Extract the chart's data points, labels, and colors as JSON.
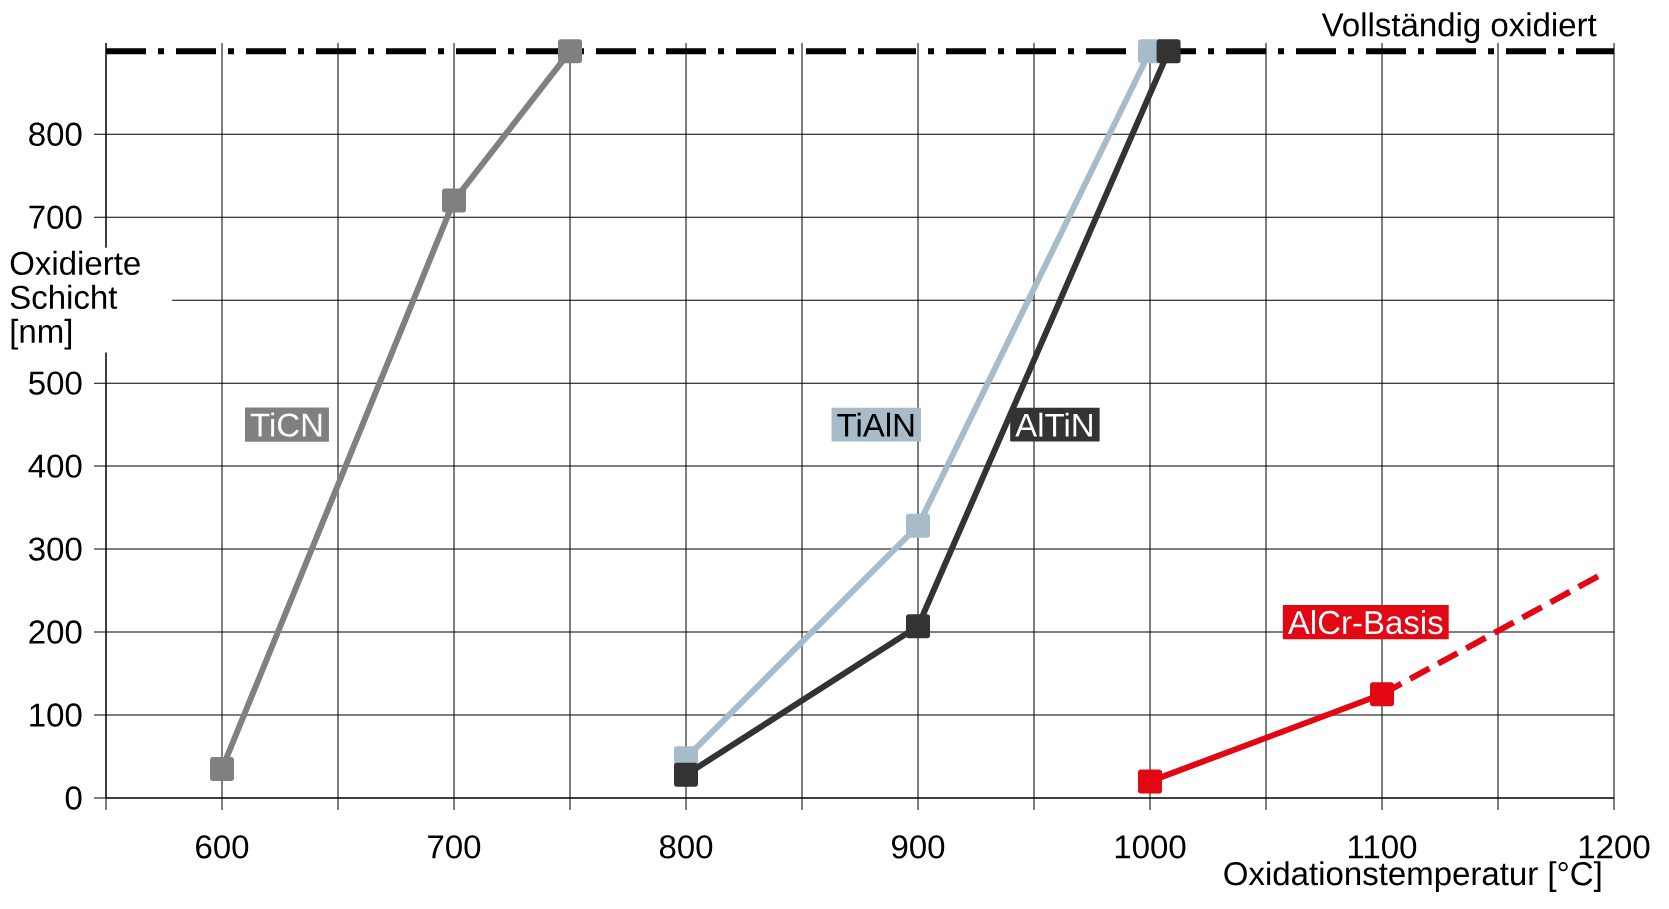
{
  "chart_data": {
    "type": "line",
    "xlabel": "Oxidationstemperatur [°C]",
    "ylabel": "Oxidierte Schicht [nm]",
    "xlim": [
      550,
      1200
    ],
    "xticks": [
      {
        "value": 550,
        "label": null
      },
      600,
      {
        "value": 650,
        "label": null
      },
      700,
      {
        "value": 750,
        "label": null
      },
      800,
      {
        "value": 850,
        "label": null
      },
      900,
      {
        "value": 950,
        "label": null
      },
      1000,
      {
        "value": 1050,
        "label": null
      },
      1100,
      {
        "value": 1150,
        "label": null
      },
      1200
    ],
    "ylim": [
      0,
      910
    ],
    "yticks": [
      0,
      100,
      200,
      300,
      400,
      500,
      {
        "value": 600,
        "label": null
      },
      700,
      800
    ],
    "grid": true,
    "marker": "square",
    "series": [
      {
        "name": "TiCN",
        "color": "#808080",
        "x": [
          600,
          700,
          750
        ],
        "values": [
          35,
          720,
          900
        ]
      },
      {
        "name": "TiAlN",
        "color": "#a7bcc8",
        "x": [
          800,
          900,
          1000
        ],
        "values": [
          48,
          328,
          900
        ]
      },
      {
        "name": "AlTiN",
        "color": "#333333",
        "x": [
          800,
          900,
          1008
        ],
        "values": [
          28,
          207,
          900
        ]
      },
      {
        "name": "AlCr-Basis",
        "color": "#e30613",
        "x": [
          1000,
          1100
        ],
        "values": [
          20,
          125
        ]
      },
      {
        "color": "#e30613",
        "x": [
          1100,
          1195
        ],
        "values": [
          125,
          270
        ],
        "line_style": "dashed",
        "marker": "none"
      }
    ],
    "ref_lines": [
      {
        "axis": "y",
        "value": 900,
        "label": "Vollständig oxidiert",
        "color": "#000000",
        "line_style": "dashed"
      }
    ]
  }
}
